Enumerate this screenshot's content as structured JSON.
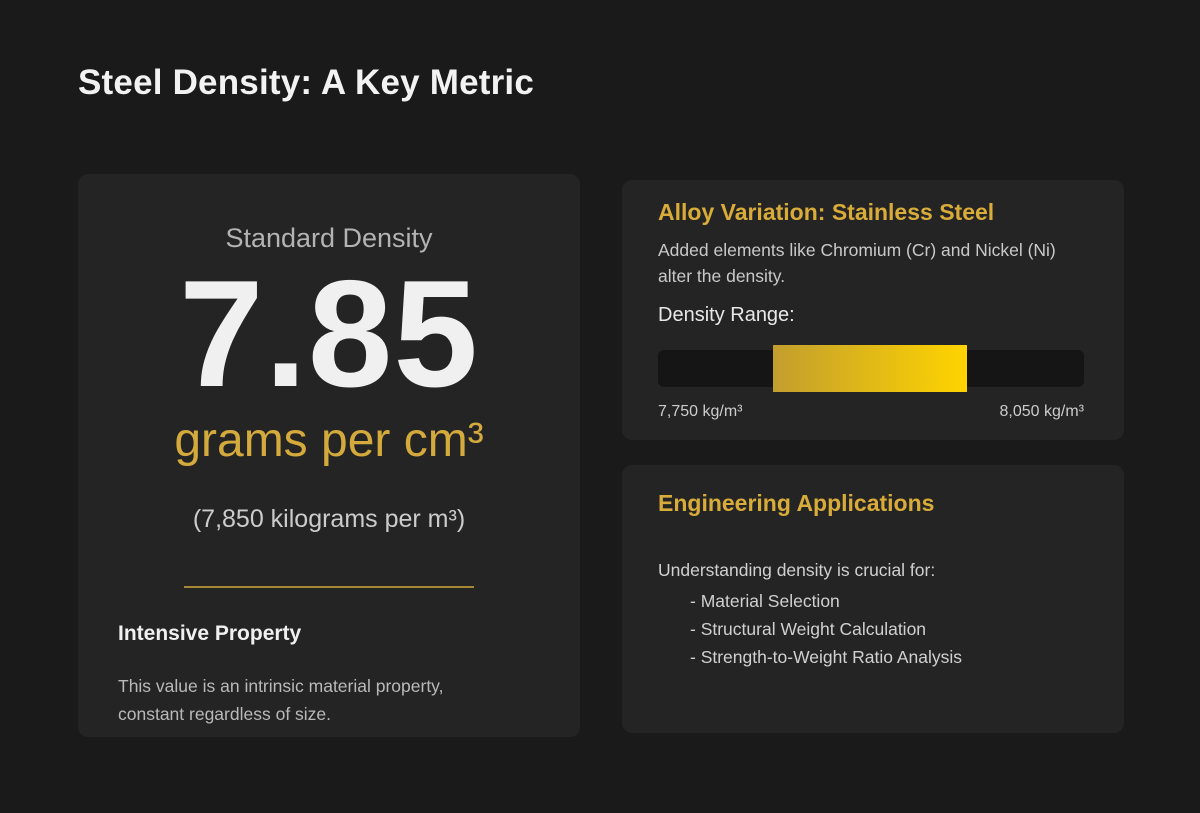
{
  "page": {
    "title": "Steel Density: A Key Metric",
    "background_color": "#1a1a1a",
    "card_color": "#242424",
    "accent_gold": "#d9ac3a"
  },
  "density_card": {
    "label": "Standard Density",
    "value": "7.85",
    "unit": "grams per cm³",
    "alt_unit": "(7,850 kilograms per m³)",
    "property_title": "Intensive Property",
    "property_text": "This value is an intrinsic material property, constant regardless of size."
  },
  "alloy_card": {
    "title": "Alloy Variation: Stainless Steel",
    "description": "Added elements like Chromium (Cr) and Nickel (Ni) alter the density.",
    "range_label": "Density Range:",
    "range_min_label": "7,750 kg/m³",
    "range_max_label": "8,050 kg/m³",
    "bar": {
      "fill_start_pct": 27.0,
      "fill_width_pct": 45.5,
      "gradient_from": "#c29e2e",
      "gradient_to": "#ffd400",
      "track_color": "#151515",
      "range_min_value": 7750,
      "range_max_value": 8050,
      "unit": "kg/m³"
    }
  },
  "applications_card": {
    "title": "Engineering Applications",
    "intro": "Understanding density is crucial for:",
    "items": [
      "- Material Selection",
      "- Structural Weight Calculation",
      "- Strength-to-Weight Ratio Analysis"
    ]
  }
}
